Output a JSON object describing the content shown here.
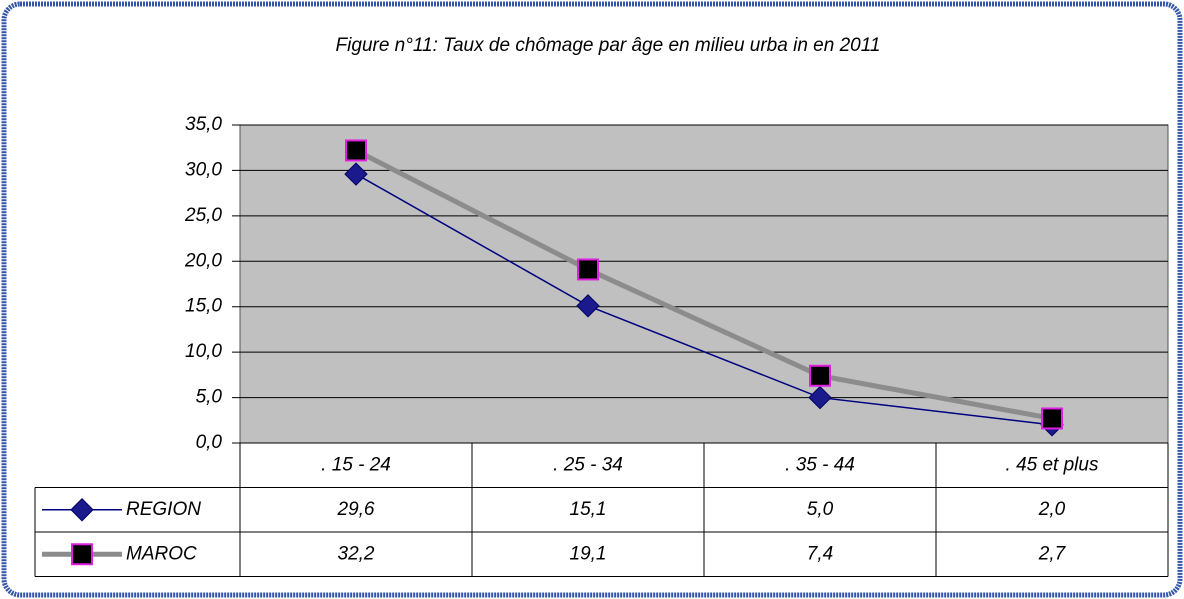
{
  "chart_data": {
    "type": "line",
    "title": "Figure n°11: Taux de chômage par âge en milieu urba in  en 2011",
    "categories": [
      ". 15 - 24",
      ". 25 - 34",
      ". 35 - 44",
      ". 45 et plus"
    ],
    "series": [
      {
        "name": "REGION",
        "color": "#000080",
        "values": [
          29.6,
          15.1,
          5.0,
          2.0
        ],
        "value_labels": [
          "29,6",
          "15,1",
          "5,0",
          "2,0"
        ]
      },
      {
        "name": "MAROC",
        "color": "#8c8c8c",
        "values": [
          32.2,
          19.1,
          7.4,
          2.7
        ],
        "value_labels": [
          "32,2",
          "19,1",
          "7,4",
          "2,7"
        ]
      }
    ],
    "ylim": [
      0,
      35
    ],
    "yticks": [
      {
        "value": 0,
        "label": "0,0"
      },
      {
        "value": 5,
        "label": "5,0"
      },
      {
        "value": 10,
        "label": "10,0"
      },
      {
        "value": 15,
        "label": "15,0"
      },
      {
        "value": 20,
        "label": "20,0"
      },
      {
        "value": 25,
        "label": "25,0"
      },
      {
        "value": 30,
        "label": "30,0"
      },
      {
        "value": 35,
        "label": "35,0"
      }
    ],
    "grid": true
  }
}
